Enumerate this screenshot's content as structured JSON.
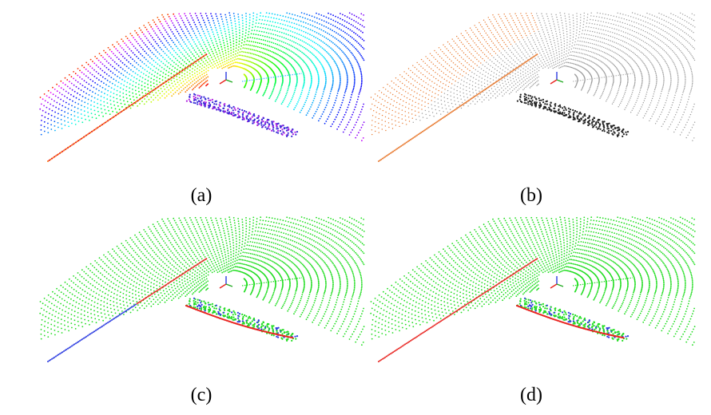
{
  "figure": {
    "panels": [
      {
        "id": "a",
        "label": "(a)",
        "style": "rainbow"
      },
      {
        "id": "b",
        "label": "(b)",
        "style": "grayscale-orange"
      },
      {
        "id": "c",
        "label": "(c)",
        "style": "segmentation-green-red-blue"
      },
      {
        "id": "d",
        "label": "(d)",
        "style": "segmentation-green-red-blue"
      }
    ]
  },
  "colors": {
    "background": "#ffffff",
    "ground": "#22dd22",
    "edge_red": "#e8231f",
    "edge_blue": "#2b3be0",
    "orange": "#e87a30",
    "gray": "#222222"
  }
}
